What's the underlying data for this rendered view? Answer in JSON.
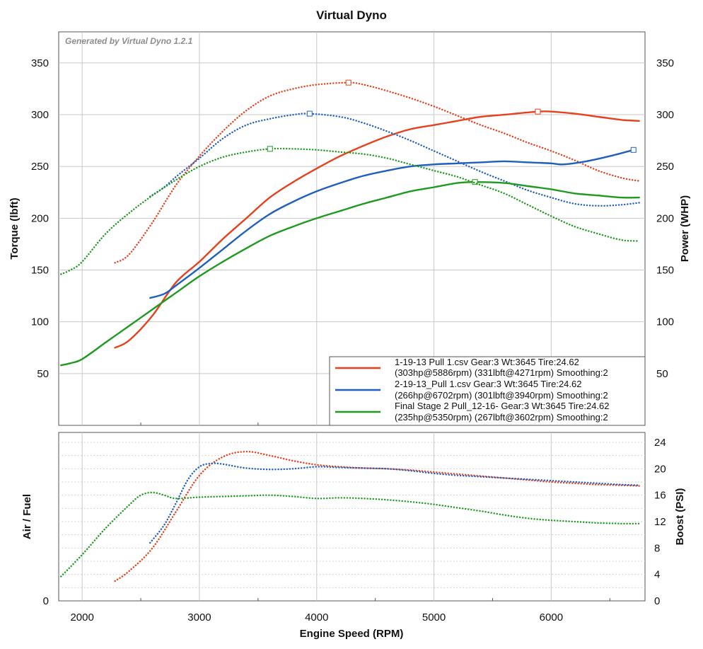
{
  "chart_data": {
    "type": "line",
    "title": "Virtual Dyno",
    "watermark": "Generated by Virtual Dyno 1.2.1",
    "xlabel": "Engine Speed (RPM)",
    "xlim": [
      1800,
      6800
    ],
    "x_ticks": [
      "2000",
      "3000",
      "4000",
      "5000",
      "6000"
    ],
    "colors": {
      "run1": "#e8401c",
      "run2": "#1f5fbf",
      "run3": "#1e9a1e"
    },
    "grid": true,
    "legend_position": "bottom-right of upper panel",
    "top_panel": {
      "ylabel_left": "Torque (lbft)",
      "ylabel_right": "Power (WHP)",
      "ylim": [
        0,
        380
      ],
      "y_ticks": [
        "50",
        "100",
        "150",
        "200",
        "250",
        "300",
        "350"
      ],
      "series": [
        {
          "kind": "power",
          "color_key": "run1",
          "style": "solid",
          "x": [
            2280,
            2400,
            2600,
            2800,
            3000,
            3200,
            3400,
            3600,
            3800,
            4000,
            4200,
            4400,
            4600,
            4800,
            5000,
            5200,
            5400,
            5600,
            5886,
            6000,
            6200,
            6400,
            6600,
            6750
          ],
          "y": [
            75,
            82,
            106,
            138,
            158,
            180,
            200,
            220,
            235,
            248,
            260,
            270,
            279,
            286,
            290,
            294,
            298,
            300,
            303,
            303,
            301,
            298,
            295,
            294
          ],
          "peak_x": 5886,
          "peak_y": 303
        },
        {
          "kind": "torque",
          "color_key": "run1",
          "style": "dotted",
          "x": [
            2280,
            2400,
            2600,
            2800,
            3000,
            3200,
            3400,
            3600,
            3800,
            4000,
            4271,
            4400,
            4600,
            4800,
            5000,
            5200,
            5400,
            5600,
            5800,
            6000,
            6200,
            6400,
            6600,
            6750
          ],
          "y": [
            157,
            165,
            196,
            232,
            260,
            284,
            304,
            318,
            325,
            329,
            331,
            329,
            323,
            316,
            308,
            299,
            290,
            282,
            273,
            265,
            256,
            246,
            239,
            236
          ],
          "peak_x": 4271,
          "peak_y": 331
        },
        {
          "kind": "power",
          "color_key": "run2",
          "style": "solid",
          "x": [
            2580,
            2700,
            2800,
            3000,
            3200,
            3400,
            3600,
            3800,
            4000,
            4200,
            4400,
            4600,
            4800,
            5000,
            5200,
            5400,
            5600,
            5800,
            6000,
            6100,
            6300,
            6500,
            6702
          ],
          "y": [
            123,
            127,
            135,
            152,
            170,
            188,
            204,
            216,
            226,
            234,
            241,
            246,
            250,
            252,
            253,
            254,
            255,
            254,
            253,
            252,
            255,
            260,
            266
          ],
          "peak_x": 6702,
          "peak_y": 266
        },
        {
          "kind": "torque",
          "color_key": "run2",
          "style": "dotted",
          "x": [
            2580,
            2700,
            2800,
            3000,
            3200,
            3400,
            3600,
            3800,
            3940,
            4200,
            4400,
            4600,
            4800,
            5000,
            5200,
            5400,
            5600,
            5800,
            6000,
            6200,
            6400,
            6600,
            6750
          ],
          "y": [
            221,
            230,
            240,
            258,
            277,
            290,
            296,
            300,
            301,
            298,
            292,
            284,
            275,
            265,
            255,
            245,
            236,
            227,
            220,
            214,
            212,
            213,
            215
          ],
          "peak_x": 3940,
          "peak_y": 301
        },
        {
          "kind": "power",
          "color_key": "run3",
          "style": "solid",
          "x": [
            1820,
            1900,
            2000,
            2200,
            2400,
            2600,
            2800,
            3000,
            3200,
            3400,
            3600,
            3800,
            4000,
            4200,
            4400,
            4600,
            4800,
            5000,
            5200,
            5350,
            5600,
            5800,
            6000,
            6200,
            6400,
            6600,
            6750
          ],
          "y": [
            58,
            60,
            64,
            80,
            96,
            112,
            128,
            144,
            158,
            171,
            183,
            192,
            200,
            207,
            214,
            220,
            226,
            230,
            234,
            235,
            234,
            231,
            228,
            224,
            222,
            220,
            220
          ],
          "peak_x": 5350,
          "peak_y": 235
        },
        {
          "kind": "torque",
          "color_key": "run3",
          "style": "dotted",
          "x": [
            1820,
            1900,
            2000,
            2200,
            2400,
            2600,
            2800,
            3000,
            3200,
            3400,
            3602,
            3800,
            4000,
            4200,
            4400,
            4600,
            4800,
            5000,
            5200,
            5400,
            5600,
            5800,
            6000,
            6200,
            6400,
            6600,
            6750
          ],
          "y": [
            146,
            150,
            158,
            185,
            205,
            222,
            237,
            250,
            259,
            264,
            267,
            267,
            266,
            264,
            262,
            258,
            252,
            246,
            240,
            232,
            224,
            213,
            202,
            192,
            185,
            179,
            178
          ],
          "peak_x": 3602,
          "peak_y": 267
        }
      ]
    },
    "bottom_panel": {
      "ylabel_left": "Air / Fuel",
      "ylabel_right": "Boost (PSI)",
      "ylim": [
        0,
        25.5
      ],
      "y_ticks_right": [
        "0",
        "4",
        "8",
        "12",
        "16",
        "20",
        "24"
      ],
      "y_tick_left": "0",
      "series": [
        {
          "color_key": "run1",
          "style": "dotted",
          "x": [
            2280,
            2400,
            2600,
            2800,
            3000,
            3200,
            3400,
            3600,
            3800,
            4000,
            4200,
            4400,
            4600,
            4800,
            5000,
            5200,
            5400,
            5600,
            5800,
            6000,
            6200,
            6400,
            6600,
            6750
          ],
          "y": [
            3.0,
            4.5,
            8.0,
            13.5,
            19.0,
            21.8,
            22.6,
            22.0,
            21.2,
            20.6,
            20.3,
            20.1,
            20.0,
            19.8,
            19.5,
            19.2,
            18.9,
            18.6,
            18.3,
            18.0,
            17.8,
            17.6,
            17.5,
            17.4
          ]
        },
        {
          "color_key": "run2",
          "style": "dotted",
          "x": [
            2580,
            2700,
            2800,
            2900,
            3000,
            3100,
            3200,
            3400,
            3600,
            3800,
            4000,
            4200,
            4400,
            4600,
            4800,
            5000,
            5200,
            5400,
            5600,
            5800,
            6000,
            6200,
            6400,
            6600,
            6750
          ],
          "y": [
            8.8,
            11.5,
            14.8,
            18.3,
            20.3,
            20.8,
            20.7,
            20.1,
            19.9,
            20.0,
            20.3,
            20.2,
            20.1,
            20.0,
            19.7,
            19.3,
            19.0,
            18.8,
            18.6,
            18.4,
            18.2,
            18.0,
            17.8,
            17.6,
            17.5
          ]
        },
        {
          "color_key": "run3",
          "style": "dotted",
          "x": [
            1820,
            2000,
            2200,
            2400,
            2500,
            2600,
            2700,
            2800,
            3000,
            3200,
            3400,
            3600,
            3800,
            4000,
            4200,
            4400,
            4600,
            4800,
            5000,
            5200,
            5400,
            5600,
            5800,
            6000,
            6200,
            6400,
            6600,
            6750
          ],
          "y": [
            3.7,
            7.0,
            11.0,
            14.5,
            16.0,
            16.4,
            16.0,
            15.5,
            15.7,
            15.8,
            15.9,
            16.0,
            15.8,
            15.5,
            15.6,
            15.5,
            15.3,
            15.0,
            14.6,
            14.1,
            13.6,
            13.0,
            12.5,
            12.2,
            12.0,
            11.8,
            11.7,
            11.7
          ]
        }
      ]
    },
    "legend": [
      {
        "color_key": "run1",
        "line1": "1-19-13 Pull 1.csv Gear:3 Wt:3645 Tire:24.62",
        "line2": "(303hp@5886rpm) (331lbft@4271rpm) Smoothing:2"
      },
      {
        "color_key": "run2",
        "line1": "2-19-13_Pull 1.csv Gear:3 Wt:3645 Tire:24.62",
        "line2": "(266hp@6702rpm) (301lbft@3940rpm) Smoothing:2"
      },
      {
        "color_key": "run3",
        "line1": "Final Stage 2 Pull_12-16- Gear:3 Wt:3645 Tire:24.62",
        "line2": "(235hp@5350rpm) (267lbft@3602rpm) Smoothing:2"
      }
    ]
  }
}
